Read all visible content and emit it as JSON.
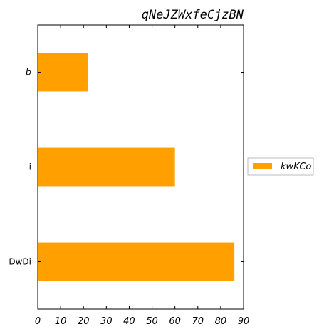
{
  "chart_data": {
    "type": "bar",
    "orientation": "horizontal",
    "title": "qNeJZWxfeCjzBN",
    "xlabel": "",
    "ylabel": "",
    "categories": [
      "b",
      "i",
      "DwDi"
    ],
    "series": [
      {
        "name": "kwKCo",
        "values": [
          22,
          60,
          86
        ],
        "color": "#ffa000"
      }
    ],
    "xlim": [
      0,
      90
    ],
    "xticks": [
      0,
      10,
      20,
      30,
      40,
      50,
      60,
      70,
      80,
      90
    ],
    "grid": false,
    "legend_position": "right"
  }
}
